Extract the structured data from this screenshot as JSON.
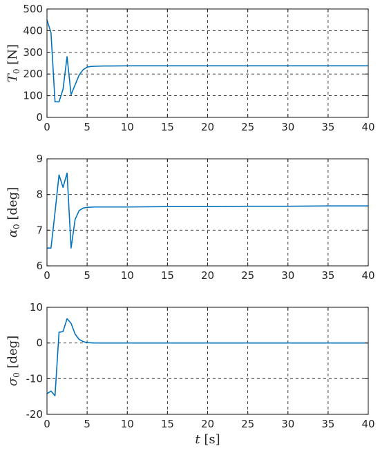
{
  "chart_data": [
    {
      "type": "line",
      "ylabel": {
        "main": "T",
        "sub": "0",
        "unit": " [N]"
      },
      "xlim": [
        0,
        40
      ],
      "ylim": [
        0,
        500
      ],
      "xticks": [
        "0",
        "5",
        "10",
        "15",
        "20",
        "25",
        "30",
        "35",
        "40"
      ],
      "yticks": [
        "0",
        "100",
        "200",
        "300",
        "400",
        "500"
      ],
      "grid": true,
      "series": [
        {
          "color": "#0072BD",
          "x": [
            0,
            0.5,
            1,
            1.5,
            2,
            2.5,
            3,
            3.5,
            4,
            4.5,
            5,
            5.5,
            6,
            7,
            8,
            10,
            15,
            20,
            25,
            30,
            35,
            40
          ],
          "y": [
            450,
            390,
            72,
            72,
            130,
            280,
            105,
            150,
            195,
            220,
            232,
            235,
            236,
            237,
            237,
            238,
            238,
            238,
            238,
            238,
            238,
            238
          ]
        }
      ]
    },
    {
      "type": "line",
      "ylabel": {
        "main": "α",
        "sub": "0",
        "unit": " [deg]"
      },
      "xlim": [
        0,
        40
      ],
      "ylim": [
        6,
        9
      ],
      "xticks": [
        "0",
        "5",
        "10",
        "15",
        "20",
        "25",
        "30",
        "35",
        "40"
      ],
      "yticks": [
        "6",
        "7",
        "8",
        "9"
      ],
      "grid": true,
      "series": [
        {
          "color": "#0072BD",
          "x": [
            0,
            0.5,
            1,
            1.5,
            2,
            2.5,
            3,
            3.5,
            4,
            4.5,
            5,
            6,
            8,
            10,
            15,
            20,
            25,
            30,
            35,
            40
          ],
          "y": [
            6.5,
            6.5,
            7.5,
            8.55,
            8.2,
            8.6,
            6.5,
            7.3,
            7.55,
            7.62,
            7.64,
            7.65,
            7.65,
            7.65,
            7.66,
            7.66,
            7.67,
            7.67,
            7.68,
            7.68
          ]
        }
      ]
    },
    {
      "type": "line",
      "ylabel": {
        "main": "σ",
        "sub": "0",
        "unit": " [deg]"
      },
      "xlabel": {
        "main": "t",
        "unit": " [s]"
      },
      "xlim": [
        0,
        40
      ],
      "ylim": [
        -20,
        10
      ],
      "xticks": [
        "0",
        "5",
        "10",
        "15",
        "20",
        "25",
        "30",
        "35",
        "40"
      ],
      "yticks": [
        "-20",
        "-10",
        "0",
        "10"
      ],
      "grid": true,
      "series": [
        {
          "color": "#0072BD",
          "x": [
            0,
            0.5,
            1,
            1.5,
            2,
            2.5,
            3,
            3.5,
            4,
            4.5,
            5,
            6,
            8,
            10,
            15,
            20,
            25,
            30,
            35,
            40
          ],
          "y": [
            -14.2,
            -13.5,
            -14.8,
            3.0,
            3.2,
            6.8,
            5.5,
            2.5,
            1.0,
            0.4,
            0.1,
            0,
            0,
            0,
            0,
            0,
            0,
            0,
            0,
            0
          ]
        }
      ]
    }
  ]
}
